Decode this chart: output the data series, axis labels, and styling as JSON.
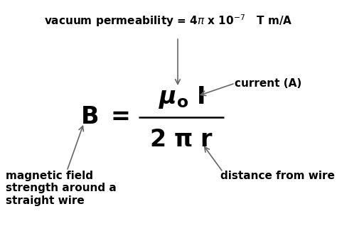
{
  "bg_color": "#ffffff",
  "text_color": "#000000",
  "arrow_color": "#666666",
  "title": "vacuum permeability = 4$\\pi$ x 10$^{-7}$   T m/A",
  "label_current": "current (A)",
  "label_distance": "distance from wire",
  "label_magnetic": "magnetic field\nstrength around a\nstraight wire",
  "fontsize_title": 11,
  "fontsize_formula_large": 24,
  "fontsize_formula_med": 22,
  "fontsize_labels": 11
}
